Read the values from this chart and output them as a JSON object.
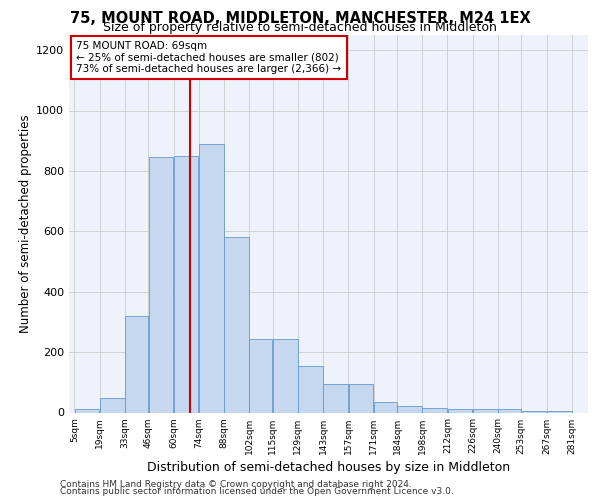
{
  "title": "75, MOUNT ROAD, MIDDLETON, MANCHESTER, M24 1EX",
  "subtitle": "Size of property relative to semi-detached houses in Middleton",
  "xlabel": "Distribution of semi-detached houses by size in Middleton",
  "ylabel": "Number of semi-detached properties",
  "footer_line1": "Contains HM Land Registry data © Crown copyright and database right 2024.",
  "footer_line2": "Contains public sector information licensed under the Open Government Licence v3.0.",
  "annotation_title": "75 MOUNT ROAD: 69sqm",
  "annotation_line1": "← 25% of semi-detached houses are smaller (802)",
  "annotation_line2": "73% of semi-detached houses are larger (2,366) →",
  "property_size": 69,
  "bin_edges": [
    5,
    19,
    33,
    46,
    60,
    74,
    88,
    102,
    115,
    129,
    143,
    157,
    171,
    184,
    198,
    212,
    226,
    240,
    253,
    267,
    281
  ],
  "bar_heights": [
    10,
    47,
    320,
    845,
    850,
    890,
    580,
    242,
    242,
    153,
    95,
    95,
    35,
    22,
    15,
    10,
    10,
    10,
    5,
    5
  ],
  "bar_color": "#c5d8f0",
  "bar_edge_color": "#6699cc",
  "tick_labels": [
    "5sqm",
    "19sqm",
    "33sqm",
    "46sqm",
    "60sqm",
    "74sqm",
    "88sqm",
    "102sqm",
    "115sqm",
    "129sqm",
    "143sqm",
    "157sqm",
    "171sqm",
    "184sqm",
    "198sqm",
    "212sqm",
    "226sqm",
    "240sqm",
    "253sqm",
    "267sqm",
    "281sqm"
  ],
  "ylim": [
    0,
    1250
  ],
  "xlim": [
    2,
    290
  ],
  "yticks": [
    0,
    200,
    400,
    600,
    800,
    1000,
    1200
  ],
  "vline_x": 69,
  "vline_color": "#cc0000",
  "grid_color": "#cccccc",
  "bg_color": "#eef2fb",
  "annotation_box_color": "#cc0000",
  "title_fontsize": 10.5,
  "subtitle_fontsize": 9,
  "ylabel_fontsize": 8.5,
  "xlabel_fontsize": 9,
  "tick_fontsize": 6.5,
  "annotation_fontsize": 7.5,
  "footer_fontsize": 6.5
}
